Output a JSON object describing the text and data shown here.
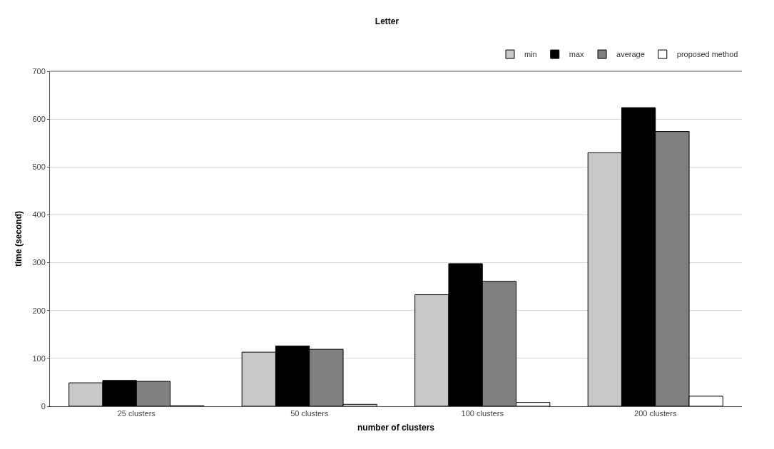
{
  "chart_data": {
    "type": "bar",
    "title": "Letter",
    "xlabel": "number of clusters",
    "ylabel": "time (second)",
    "categories": [
      "25 clusters",
      "50 clusters",
      "100 clusters",
      "200 clusters"
    ],
    "series": [
      {
        "name": "min",
        "color": "#c8c8c8",
        "values": [
          49,
          113,
          233,
          530
        ]
      },
      {
        "name": "max",
        "color": "#000000",
        "values": [
          54,
          126,
          298,
          624
        ]
      },
      {
        "name": "average",
        "color": "#808080",
        "values": [
          52,
          119,
          261,
          574
        ]
      },
      {
        "name": "proposed method",
        "color": "#ffffff",
        "values": [
          1,
          4,
          8,
          21
        ]
      }
    ],
    "ylim": [
      0,
      700
    ],
    "yticks": [
      0,
      100,
      200,
      300,
      400,
      500,
      600,
      700
    ],
    "grid": "y",
    "legend": "top right"
  }
}
